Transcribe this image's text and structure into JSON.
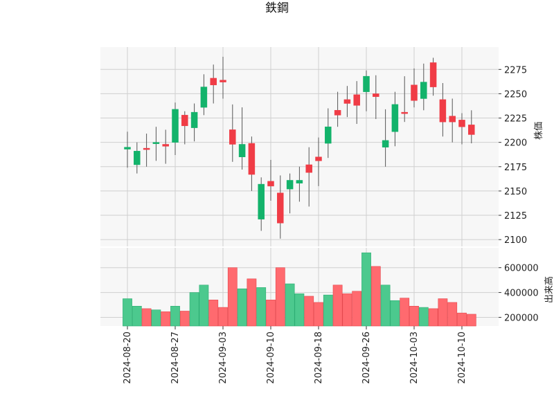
{
  "title": "鉄鋼",
  "colors": {
    "up": "#13b36b",
    "down": "#f03c46",
    "up_volume": "#4cc98e",
    "down_volume": "#ff6a6f",
    "grid": "#cfcfcf",
    "panel_bg": "#f7f7f7",
    "wick": "#555555"
  },
  "chart_data": {
    "type": "candlestick",
    "price_axis_label": "株価",
    "volume_axis_label": "出来高",
    "price_ylim": [
      2093,
      2298
    ],
    "volume_ylim": [
      130000,
      760000
    ],
    "price_ticks": [
      2100,
      2125,
      2150,
      2175,
      2200,
      2225,
      2250,
      2275
    ],
    "volume_ticks": [
      200000,
      400000,
      600000
    ],
    "volume_tick_labels": [
      "200000",
      "400000",
      "600000"
    ],
    "x_tick_labels": [
      "2024-08-20",
      "2024-08-27",
      "2024-09-03",
      "2024-09-10",
      "2024-09-18",
      "2024-09-26",
      "2024-10-03",
      "2024-10-10"
    ],
    "x_tick_indices": [
      0,
      5,
      10,
      15,
      20,
      25,
      30,
      35
    ],
    "grid": true,
    "candles": [
      {
        "date": "2024-08-20",
        "open": 2193,
        "high": 2211,
        "low": 2174,
        "close": 2195,
        "volume": 350000
      },
      {
        "date": "2024-08-21",
        "open": 2177,
        "high": 2200,
        "low": 2168,
        "close": 2191,
        "volume": 290000
      },
      {
        "date": "2024-08-22",
        "open": 2194,
        "high": 2209,
        "low": 2175,
        "close": 2193,
        "volume": 270000
      },
      {
        "date": "2024-08-23",
        "open": 2199,
        "high": 2216,
        "low": 2181,
        "close": 2200,
        "volume": 260000
      },
      {
        "date": "2024-08-26",
        "open": 2198,
        "high": 2213,
        "low": 2178,
        "close": 2196,
        "volume": 245000
      },
      {
        "date": "2024-08-27",
        "open": 2200,
        "high": 2241,
        "low": 2187,
        "close": 2234,
        "volume": 290000
      },
      {
        "date": "2024-08-28",
        "open": 2228,
        "high": 2232,
        "low": 2198,
        "close": 2217,
        "volume": 250000
      },
      {
        "date": "2024-08-29",
        "open": 2215,
        "high": 2240,
        "low": 2201,
        "close": 2231,
        "volume": 400000
      },
      {
        "date": "2024-08-30",
        "open": 2236,
        "high": 2270,
        "low": 2228,
        "close": 2257,
        "volume": 460000
      },
      {
        "date": "2024-09-02",
        "open": 2266,
        "high": 2280,
        "low": 2240,
        "close": 2259,
        "volume": 340000
      },
      {
        "date": "2024-09-03",
        "open": 2264,
        "high": 2288,
        "low": 2245,
        "close": 2262,
        "volume": 280000
      },
      {
        "date": "2024-09-04",
        "open": 2213,
        "high": 2239,
        "low": 2180,
        "close": 2198,
        "volume": 600000
      },
      {
        "date": "2024-09-05",
        "open": 2185,
        "high": 2236,
        "low": 2172,
        "close": 2198,
        "volume": 430000
      },
      {
        "date": "2024-09-06",
        "open": 2199,
        "high": 2206,
        "low": 2150,
        "close": 2167,
        "volume": 510000
      },
      {
        "date": "2024-09-09",
        "open": 2121,
        "high": 2164,
        "low": 2109,
        "close": 2157,
        "volume": 440000
      },
      {
        "date": "2024-09-10",
        "open": 2160,
        "high": 2182,
        "low": 2140,
        "close": 2155,
        "volume": 340000
      },
      {
        "date": "2024-09-11",
        "open": 2148,
        "high": 2166,
        "low": 2101,
        "close": 2117,
        "volume": 600000
      },
      {
        "date": "2024-09-12",
        "open": 2152,
        "high": 2168,
        "low": 2127,
        "close": 2161,
        "volume": 470000
      },
      {
        "date": "2024-09-13",
        "open": 2158,
        "high": 2175,
        "low": 2139,
        "close": 2161,
        "volume": 390000
      },
      {
        "date": "2024-09-17",
        "open": 2177,
        "high": 2195,
        "low": 2134,
        "close": 2169,
        "volume": 370000
      },
      {
        "date": "2024-09-18",
        "open": 2185,
        "high": 2205,
        "low": 2155,
        "close": 2181,
        "volume": 320000
      },
      {
        "date": "2024-09-19",
        "open": 2199,
        "high": 2235,
        "low": 2184,
        "close": 2216,
        "volume": 380000
      },
      {
        "date": "2024-09-20",
        "open": 2233,
        "high": 2252,
        "low": 2216,
        "close": 2228,
        "volume": 460000
      },
      {
        "date": "2024-09-24",
        "open": 2244,
        "high": 2258,
        "low": 2226,
        "close": 2240,
        "volume": 390000
      },
      {
        "date": "2024-09-25",
        "open": 2249,
        "high": 2263,
        "low": 2219,
        "close": 2238,
        "volume": 410000
      },
      {
        "date": "2024-09-26",
        "open": 2252,
        "high": 2274,
        "low": 2232,
        "close": 2268,
        "volume": 720000
      },
      {
        "date": "2024-09-27",
        "open": 2250,
        "high": 2269,
        "low": 2224,
        "close": 2247,
        "volume": 610000
      },
      {
        "date": "2024-09-30",
        "open": 2195,
        "high": 2234,
        "low": 2175,
        "close": 2202,
        "volume": 460000
      },
      {
        "date": "2024-10-01",
        "open": 2211,
        "high": 2252,
        "low": 2196,
        "close": 2239,
        "volume": 335000
      },
      {
        "date": "2024-10-02",
        "open": 2231,
        "high": 2268,
        "low": 2221,
        "close": 2230,
        "volume": 355000
      },
      {
        "date": "2024-10-03",
        "open": 2259,
        "high": 2276,
        "low": 2236,
        "close": 2243,
        "volume": 290000
      },
      {
        "date": "2024-10-04",
        "open": 2245,
        "high": 2281,
        "low": 2233,
        "close": 2262,
        "volume": 280000
      },
      {
        "date": "2024-10-07",
        "open": 2282,
        "high": 2287,
        "low": 2248,
        "close": 2257,
        "volume": 270000
      },
      {
        "date": "2024-10-08",
        "open": 2244,
        "high": 2261,
        "low": 2206,
        "close": 2221,
        "volume": 350000
      },
      {
        "date": "2024-10-09",
        "open": 2227,
        "high": 2245,
        "low": 2200,
        "close": 2221,
        "volume": 320000
      },
      {
        "date": "2024-10-10",
        "open": 2223,
        "high": 2230,
        "low": 2198,
        "close": 2216,
        "volume": 235000
      },
      {
        "date": "2024-10-11",
        "open": 2218,
        "high": 2233,
        "low": 2199,
        "close": 2208,
        "volume": 225000
      }
    ]
  }
}
